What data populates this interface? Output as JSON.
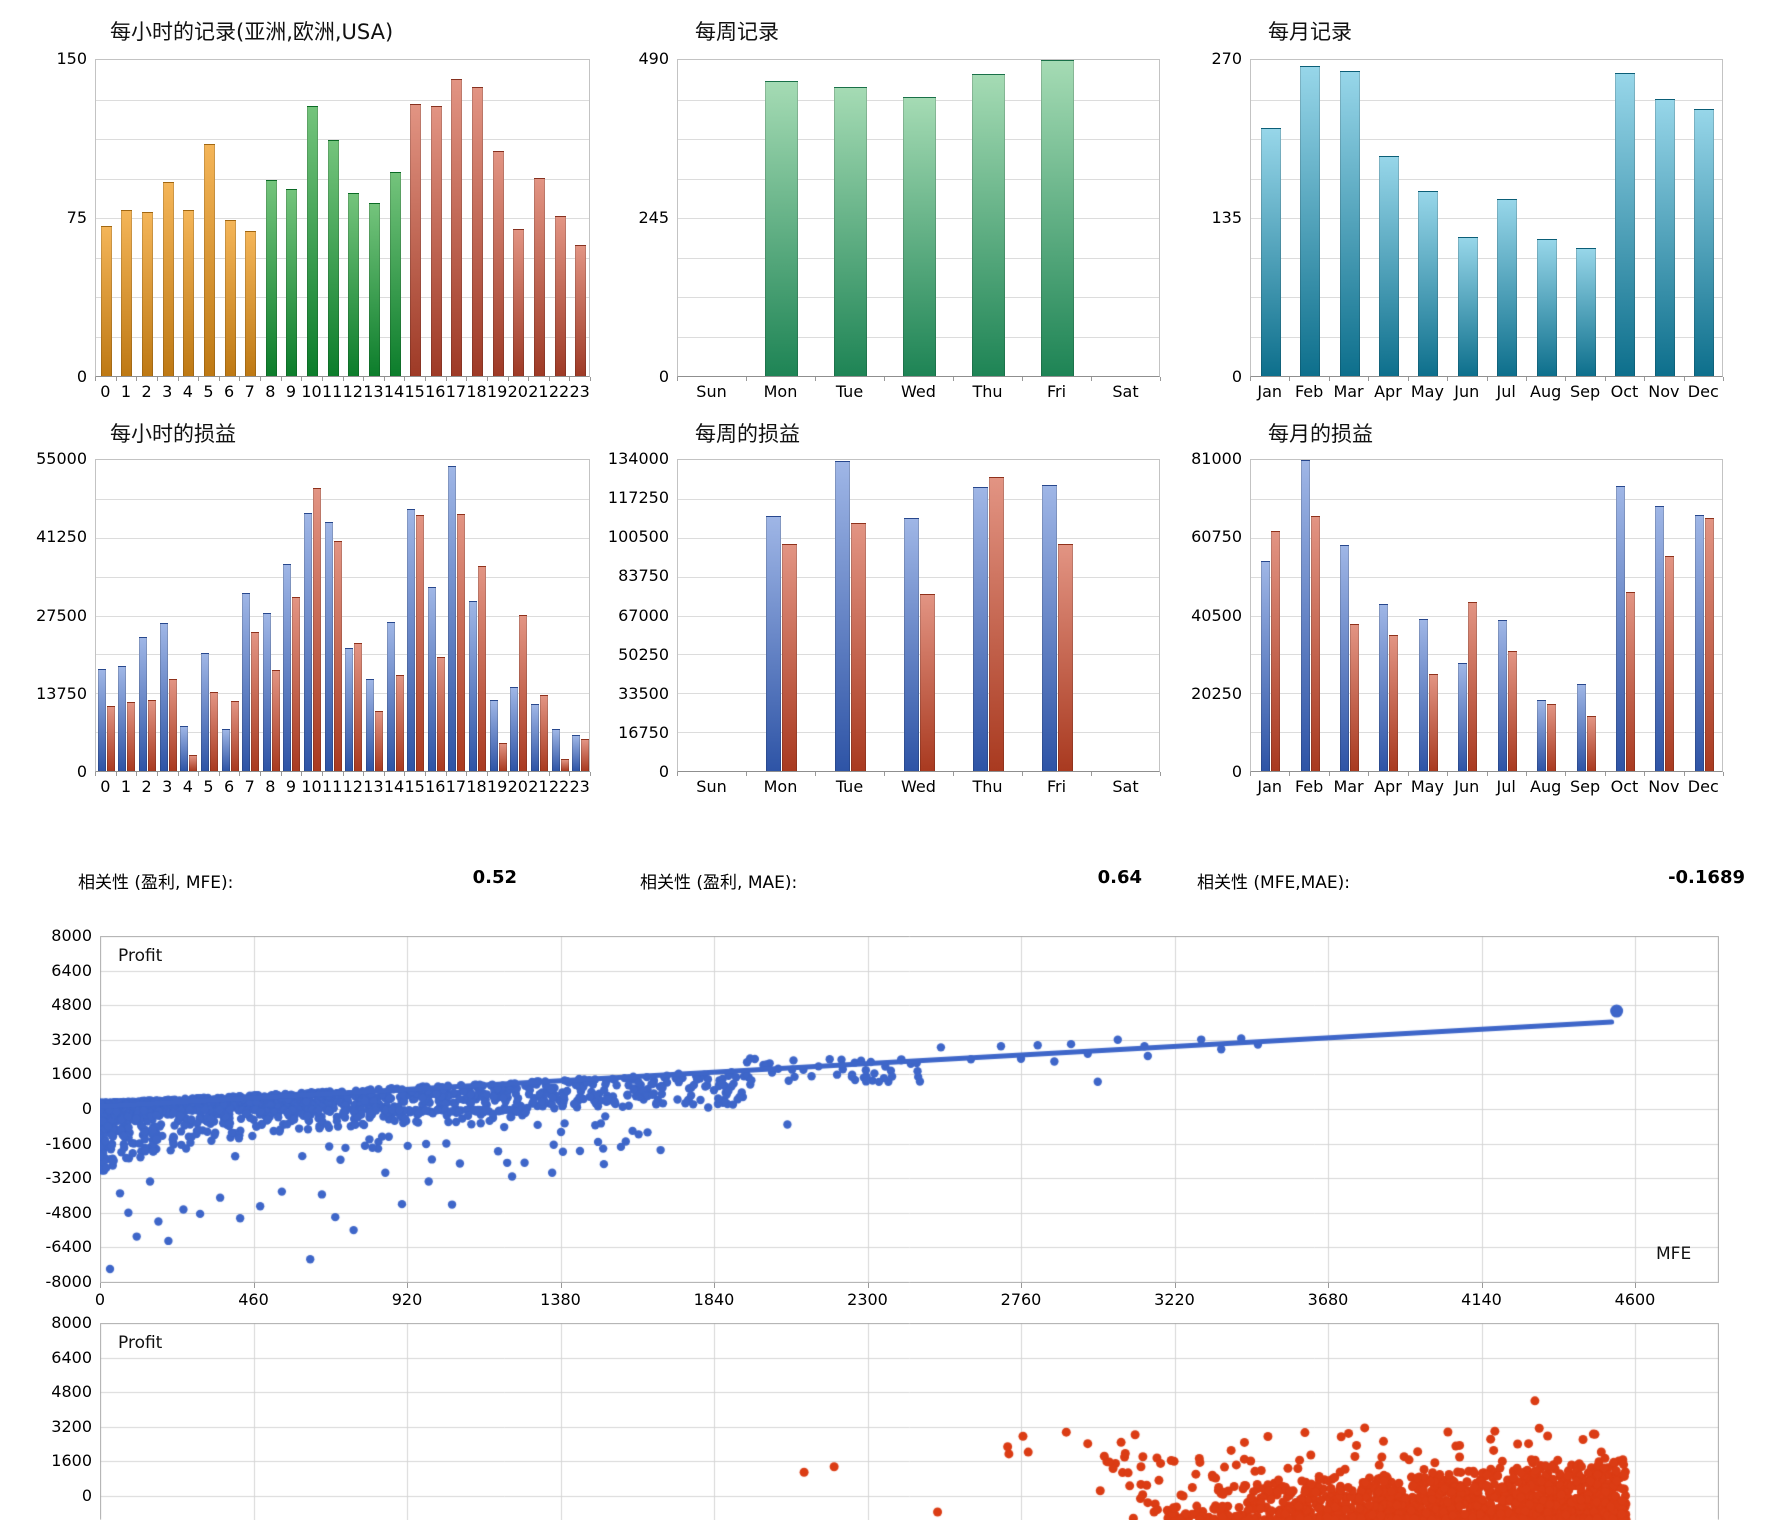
{
  "correlations": [
    {
      "label": "相关性 (盈利, MFE):",
      "value": "0.52"
    },
    {
      "label": "相关性 (盈利, MAE):",
      "value": "0.64"
    },
    {
      "label": "相关性 (MFE,MAE):",
      "value": "-0.1689"
    }
  ],
  "scatter_labels": {
    "profit": "Profit",
    "mfe": "MFE"
  },
  "chart_data": [
    {
      "id": "hourly-records",
      "type": "bar",
      "title": "每小时的记录(亚洲,欧洲,USA)",
      "categories": [
        "0",
        "1",
        "2",
        "3",
        "4",
        "5",
        "6",
        "7",
        "8",
        "9",
        "10",
        "11",
        "12",
        "13",
        "14",
        "15",
        "16",
        "17",
        "18",
        "19",
        "20",
        "21",
        "22",
        "23"
      ],
      "values": [
        71,
        79,
        78,
        92,
        79,
        110,
        74,
        69,
        93,
        89,
        128,
        112,
        87,
        82,
        97,
        129,
        128,
        141,
        137,
        107,
        70,
        94,
        76,
        62
      ],
      "ylim": [
        0,
        150
      ],
      "y_tick_labels": [
        "150",
        "75",
        "0"
      ],
      "grid_divisions": 8,
      "bar_colors": [
        {
          "from": 0,
          "to": 7,
          "top": "#F4B558",
          "bottom": "#BE7914"
        },
        {
          "from": 8,
          "to": 14,
          "top": "#74C47C",
          "bottom": "#0C7D2B"
        },
        {
          "from": 15,
          "to": 23,
          "top": "#E29483",
          "bottom": "#9E3A26"
        }
      ]
    },
    {
      "id": "weekly-records",
      "type": "bar",
      "title": "每周记录",
      "categories": [
        "Sun",
        "Mon",
        "Tue",
        "Wed",
        "Thu",
        "Fri",
        "Sat"
      ],
      "values": [
        0,
        457,
        448,
        432,
        469,
        490,
        0
      ],
      "ylim": [
        0,
        490
      ],
      "y_tick_labels": [
        "490",
        "245",
        "0"
      ],
      "grid_divisions": 8,
      "bar_colors": [
        {
          "from": 0,
          "to": 6,
          "top": "#A5DBB4",
          "bottom": "#1E8455"
        }
      ]
    },
    {
      "id": "monthly-records",
      "type": "bar",
      "title": "每月记录",
      "categories": [
        "Jan",
        "Feb",
        "Mar",
        "Apr",
        "May",
        "Jun",
        "Jul",
        "Aug",
        "Sep",
        "Oct",
        "Nov",
        "Dec"
      ],
      "values": [
        212,
        265,
        261,
        188,
        158,
        119,
        151,
        117,
        109,
        259,
        237,
        228
      ],
      "ylim": [
        0,
        270
      ],
      "y_tick_labels": [
        "270",
        "135",
        "0"
      ],
      "grid_divisions": 8,
      "bar_colors": [
        {
          "from": 0,
          "to": 11,
          "top": "#97D6E9",
          "bottom": "#0D6F8C"
        }
      ]
    },
    {
      "id": "hourly-pnl",
      "type": "bar",
      "title": "每小时的损益",
      "categories": [
        "0",
        "1",
        "2",
        "3",
        "4",
        "5",
        "6",
        "7",
        "8",
        "9",
        "10",
        "11",
        "12",
        "13",
        "14",
        "15",
        "16",
        "17",
        "18",
        "19",
        "20",
        "21",
        "22",
        "23"
      ],
      "series": [
        {
          "name": "pnl-blue",
          "top": "#9FB6E6",
          "bottom": "#2E54A6",
          "values": [
            18100,
            18500,
            23700,
            26100,
            7900,
            20900,
            7400,
            31400,
            28000,
            36600,
            45600,
            44100,
            21800,
            16300,
            26400,
            46300,
            32600,
            53900,
            30100,
            12600,
            14800,
            11900,
            7400,
            6300
          ]
        },
        {
          "name": "pnl-red",
          "top": "#E29483",
          "bottom": "#A93A20",
          "values": [
            11500,
            12200,
            12600,
            16200,
            2900,
            13900,
            12300,
            24600,
            17800,
            30700,
            50100,
            40700,
            22600,
            10600,
            16900,
            45200,
            20200,
            45500,
            36300,
            5000,
            27500,
            13400,
            2100,
            5600
          ]
        }
      ],
      "ylim": [
        0,
        55000
      ],
      "y_tick_labels": [
        "55000",
        "41250",
        "27500",
        "13750",
        "0"
      ],
      "grid_divisions": 8
    },
    {
      "id": "weekly-pnl",
      "type": "bar",
      "title": "每周的损益",
      "categories": [
        "Sun",
        "Mon",
        "Tue",
        "Wed",
        "Thu",
        "Fri",
        "Sat"
      ],
      "series": [
        {
          "name": "pnl-blue",
          "top": "#9FB6E6",
          "bottom": "#2E54A6",
          "values": [
            0,
            109700,
            133400,
            108900,
            122500,
            123400,
            0
          ]
        },
        {
          "name": "pnl-red",
          "top": "#E29483",
          "bottom": "#A93A20",
          "values": [
            0,
            97600,
            106900,
            76200,
            126600,
            97800,
            0
          ]
        }
      ],
      "ylim": [
        0,
        134000
      ],
      "y_tick_labels": [
        "134000",
        "117250",
        "100500",
        "83750",
        "67000",
        "50250",
        "33500",
        "16750",
        "0"
      ],
      "grid_divisions": 8
    },
    {
      "id": "monthly-pnl",
      "type": "bar",
      "title": "每月的损益",
      "categories": [
        "Jan",
        "Feb",
        "Mar",
        "Apr",
        "May",
        "Jun",
        "Jul",
        "Aug",
        "Sep",
        "Oct",
        "Nov",
        "Dec"
      ],
      "series": [
        {
          "name": "pnl-blue",
          "top": "#9FB6E6",
          "bottom": "#2E54A6",
          "values": [
            54700,
            81000,
            58900,
            43400,
            39500,
            28200,
            39400,
            18600,
            22700,
            74100,
            69000,
            66700
          ]
        },
        {
          "name": "pnl-red",
          "top": "#E29483",
          "bottom": "#A93A20",
          "values": [
            62400,
            66400,
            38400,
            35400,
            25200,
            44100,
            31200,
            17500,
            14300,
            46700,
            55900,
            66000
          ]
        }
      ],
      "ylim": [
        0,
        81000
      ],
      "y_tick_labels": [
        "81000",
        "60750",
        "40500",
        "20250",
        "0"
      ],
      "grid_divisions": 8
    },
    {
      "id": "profit-vs-mfe",
      "type": "scatter",
      "x_label": "MFE",
      "y_label": "Profit",
      "xlim": [
        0,
        4600
      ],
      "ylim": [
        -8000,
        8000
      ],
      "x_tick_labels": [
        "0",
        "460",
        "920",
        "1380",
        "1840",
        "2300",
        "2760",
        "3220",
        "3680",
        "4140",
        "4600"
      ],
      "y_tick_labels": [
        "8000",
        "6400",
        "4800",
        "3200",
        "1600",
        "0",
        "-1600",
        "-3200",
        "-4800",
        "-6400",
        "-8000"
      ],
      "dot_color": "#3E66C9",
      "trend_line": {
        "from": [
          0,
          120
        ],
        "to": [
          4530,
          4020
        ]
      },
      "end_point": [
        4545,
        4530
      ],
      "points": [
        [
          2450,
          1750
        ],
        [
          2520,
          2850
        ],
        [
          2610,
          2300
        ],
        [
          2700,
          2900
        ],
        [
          2760,
          2320
        ],
        [
          2810,
          2950
        ],
        [
          2860,
          2200
        ],
        [
          2910,
          3000
        ],
        [
          2960,
          2550
        ],
        [
          2990,
          1260
        ],
        [
          3050,
          3200
        ],
        [
          3130,
          2900
        ],
        [
          3140,
          2450
        ],
        [
          3300,
          3210
        ],
        [
          3360,
          2760
        ],
        [
          3420,
          3260
        ],
        [
          3470,
          2980
        ],
        [
          1680,
          -1900
        ],
        [
          2060,
          -720
        ],
        [
          30,
          -7400
        ],
        [
          60,
          -3900
        ],
        [
          85,
          -4800
        ],
        [
          110,
          -5900
        ],
        [
          150,
          -3350
        ],
        [
          175,
          -5200
        ],
        [
          205,
          -6100
        ],
        [
          250,
          -4650
        ],
        [
          300,
          -4850
        ],
        [
          360,
          -4100
        ],
        [
          420,
          -5050
        ],
        [
          480,
          -4500
        ],
        [
          545,
          -3820
        ],
        [
          630,
          -6950
        ],
        [
          665,
          -3950
        ],
        [
          705,
          -5000
        ],
        [
          760,
          -5600
        ],
        [
          855,
          -2950
        ],
        [
          905,
          -4400
        ],
        [
          985,
          -3350
        ],
        [
          1055,
          -4420
        ],
        [
          1235,
          -3120
        ],
        [
          1355,
          -2950
        ],
        [
          1510,
          -2550
        ]
      ],
      "clusters": [
        {
          "kind": "wedge",
          "n": 1150,
          "seed": 7,
          "x": [
            0,
            1950
          ],
          "xpow": 2.1,
          "ymin": 20,
          "ybase": 280,
          "yslope": 0.78,
          "ypow": 0.75
        },
        {
          "kind": "decay",
          "n": 540,
          "seed": 11,
          "x": [
            0,
            1280
          ],
          "xpow": 2.4,
          "off": 40,
          "amp": 2500,
          "tau": 420,
          "floor": 380,
          "ypow": 2.4
        },
        {
          "kind": "band",
          "n": 48,
          "seed": 23,
          "x": [
            1900,
            2460
          ],
          "xpow": 1,
          "y": [
            1250,
            2350
          ]
        },
        {
          "kind": "band",
          "n": 60,
          "seed": 31,
          "x": [
            240,
            1720
          ],
          "xpow": 1.25,
          "y": [
            -2600,
            -280
          ]
        }
      ]
    },
    {
      "id": "profit-vs-mae",
      "type": "scatter",
      "y_label": "Profit",
      "xlim": [
        0,
        4600
      ],
      "ylim_top": 8000,
      "y_tick_labels": [
        "8000",
        "6400",
        "4800",
        "3200",
        "1600",
        "0"
      ],
      "dot_color": "#DB3C14",
      "points": [
        [
          2110,
          1100
        ],
        [
          2200,
          1350
        ],
        [
          2510,
          -740
        ],
        [
          4300,
          4400
        ],
        [
          2720,
          2280
        ],
        [
          2960,
          2420
        ],
        [
          3060,
          2480
        ],
        [
          3500,
          2750
        ],
        [
          3790,
          3150
        ],
        [
          4180,
          3000
        ],
        [
          4480,
          2850
        ]
      ],
      "clusters": [
        {
          "kind": "wedge",
          "n": 1500,
          "seed": 41,
          "x": [
            3080,
            4575
          ],
          "xpow": 0.5,
          "ymin": -1100,
          "ybase": 250,
          "yslope": 0.95,
          "ypow": 2.2
        },
        {
          "kind": "band",
          "n": 80,
          "seed": 53,
          "x": [
            2790,
            4570
          ],
          "xpow": 0.75,
          "y": [
            150,
            1900
          ]
        },
        {
          "kind": "band",
          "n": 28,
          "seed": 61,
          "x": [
            2700,
            4560
          ],
          "xpow": 1,
          "y": [
            1750,
            3150
          ]
        }
      ]
    }
  ]
}
